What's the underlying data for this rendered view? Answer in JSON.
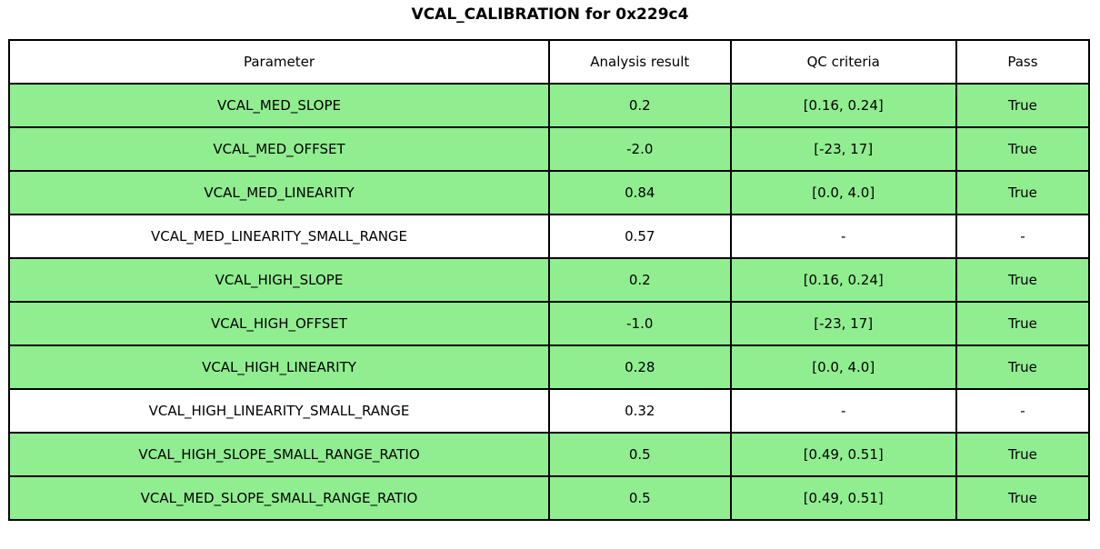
{
  "title": "VCAL_CALIBRATION for 0x229c4",
  "colors": {
    "pass_row_bg": "#90EE90",
    "no_qc_row_bg": "#FFFFFF",
    "header_bg": "#FFFFFF",
    "border": "#000000",
    "text": "#000000"
  },
  "chart_data": {
    "type": "table",
    "title": "VCAL_CALIBRATION for 0x229c4",
    "columns": [
      "Parameter",
      "Analysis result",
      "QC criteria",
      "Pass"
    ],
    "rows": [
      {
        "parameter": "VCAL_MED_SLOPE",
        "result": "0.2",
        "qc": "[0.16, 0.24]",
        "pass": "True",
        "highlight": true
      },
      {
        "parameter": "VCAL_MED_OFFSET",
        "result": "-2.0",
        "qc": "[-23, 17]",
        "pass": "True",
        "highlight": true
      },
      {
        "parameter": "VCAL_MED_LINEARITY",
        "result": "0.84",
        "qc": "[0.0, 4.0]",
        "pass": "True",
        "highlight": true
      },
      {
        "parameter": "VCAL_MED_LINEARITY_SMALL_RANGE",
        "result": "0.57",
        "qc": "-",
        "pass": "-",
        "highlight": false
      },
      {
        "parameter": "VCAL_HIGH_SLOPE",
        "result": "0.2",
        "qc": "[0.16, 0.24]",
        "pass": "True",
        "highlight": true
      },
      {
        "parameter": "VCAL_HIGH_OFFSET",
        "result": "-1.0",
        "qc": "[-23, 17]",
        "pass": "True",
        "highlight": true
      },
      {
        "parameter": "VCAL_HIGH_LINEARITY",
        "result": "0.28",
        "qc": "[0.0, 4.0]",
        "pass": "True",
        "highlight": true
      },
      {
        "parameter": "VCAL_HIGH_LINEARITY_SMALL_RANGE",
        "result": "0.32",
        "qc": "-",
        "pass": "-",
        "highlight": false
      },
      {
        "parameter": "VCAL_HIGH_SLOPE_SMALL_RANGE_RATIO",
        "result": "0.5",
        "qc": "[0.49, 0.51]",
        "pass": "True",
        "highlight": true
      },
      {
        "parameter": "VCAL_MED_SLOPE_SMALL_RANGE_RATIO",
        "result": "0.5",
        "qc": "[0.49, 0.51]",
        "pass": "True",
        "highlight": true
      }
    ]
  }
}
